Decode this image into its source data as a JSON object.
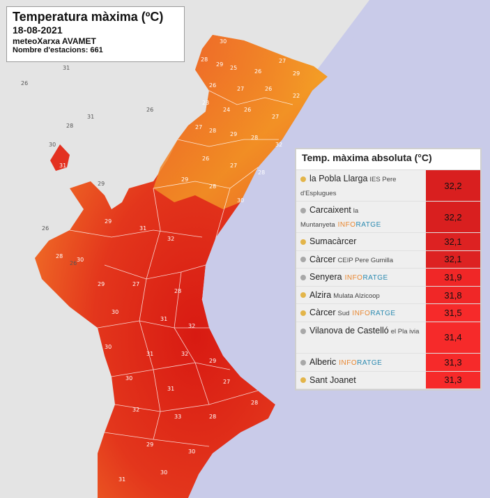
{
  "title": "Temperatura màxima (ºC)",
  "date": "18-08-2021",
  "network": "meteoXarxa AVAMET",
  "stations": "Nombre d'estacions: 661",
  "table": {
    "header": "Temp. màxima absoluta (°C)",
    "rows": [
      {
        "name": "la Pobla Llarga",
        "sub": "IES Pere d'Esplugues",
        "dot": "#e3b54a",
        "value": "32,2",
        "color": "#d91f1f",
        "inforatge": false,
        "tall": true
      },
      {
        "name": "Carcaixent",
        "sub": "la Muntanyeta",
        "dot": "#a8a8a8",
        "value": "32,2",
        "color": "#d91f1f",
        "inforatge": true,
        "tall": true
      },
      {
        "name": "Sumacàrcer",
        "sub": "",
        "dot": "#e3b54a",
        "value": "32,1",
        "color": "#dd2222",
        "inforatge": false,
        "tall": false
      },
      {
        "name": "Càrcer",
        "sub": "CEIP Pere Gumilla",
        "dot": "#a8a8a8",
        "value": "32,1",
        "color": "#dd2222",
        "inforatge": false,
        "tall": false
      },
      {
        "name": "Senyera",
        "sub": "",
        "dot": "#a8a8a8",
        "value": "31,9",
        "color": "#f02727",
        "inforatge": true,
        "tall": false
      },
      {
        "name": "Alzira",
        "sub": "Mulata Alzicoop",
        "dot": "#e3b54a",
        "value": "31,8",
        "color": "#f02727",
        "inforatge": false,
        "tall": false
      },
      {
        "name": "Càrcer",
        "sub": "Sud",
        "dot": "#e3b54a",
        "value": "31,5",
        "color": "#f62a2a",
        "inforatge": true,
        "tall": false
      },
      {
        "name": "Vilanova de Castelló",
        "sub": "el Pla ivia",
        "dot": "#a8a8a8",
        "value": "31,4",
        "color": "#f62a2a",
        "inforatge": false,
        "tall": true
      },
      {
        "name": "Alberic",
        "sub": "",
        "dot": "#a8a8a8",
        "value": "31,3",
        "color": "#f62a2a",
        "inforatge": true,
        "tall": false
      },
      {
        "name": "Sant Joanet",
        "sub": "",
        "dot": "#e3b54a",
        "value": "31,3",
        "color": "#f62a2a",
        "inforatge": false,
        "tall": false
      }
    ],
    "inforatge_a": "INFO",
    "inforatge_b": "RATGE"
  },
  "outside_labels": [
    "31",
    "26",
    "26",
    "31",
    "28",
    "30",
    "29",
    "26",
    "26"
  ],
  "map_labels": [
    "30",
    "28",
    "29",
    "25",
    "26",
    "27",
    "29",
    "26",
    "27",
    "26",
    "22",
    "23",
    "24",
    "26",
    "27",
    "27",
    "28",
    "29",
    "28",
    "32",
    "26",
    "27",
    "28",
    "29",
    "28",
    "30",
    "31",
    "29",
    "31",
    "32",
    "28",
    "30",
    "29",
    "27",
    "28",
    "30",
    "31",
    "32",
    "30",
    "31",
    "32",
    "29",
    "30",
    "31",
    "27",
    "28",
    "32",
    "33",
    "28",
    "29",
    "30",
    "30",
    "31"
  ],
  "colors": {
    "land_outer": "#ea4d2f",
    "land_core": "#e01f12",
    "land_north": "#f39a25",
    "land_inland": "#a0a0a0",
    "sea": "#c9cbe9"
  }
}
